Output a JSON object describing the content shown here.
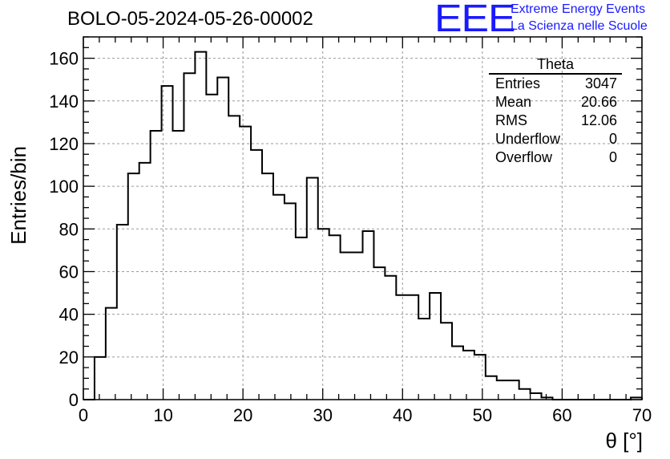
{
  "title": "BOLO-05-2024-05-26-00002",
  "logo": {
    "mark": "EEE",
    "line1": "Extreme Energy Events",
    "line2": "La Scienza nelle Scuole",
    "color": "#1a1aff"
  },
  "stats": {
    "name": "Theta",
    "rows": [
      {
        "label": "Entries",
        "value": "3047"
      },
      {
        "label": "Mean",
        "value": "20.66"
      },
      {
        "label": "RMS",
        "value": "12.06"
      },
      {
        "label": "Underflow",
        "value": "0"
      },
      {
        "label": "Overflow",
        "value": "0"
      }
    ]
  },
  "chart_data": {
    "type": "bar",
    "style": "step-histogram",
    "title": "BOLO-05-2024-05-26-00002",
    "xlabel": "θ [°]",
    "ylabel": "Entries/bin",
    "xlim": [
      0,
      70
    ],
    "ylim": [
      0,
      170
    ],
    "bin_width": 1.4,
    "xticks": [
      0,
      10,
      20,
      30,
      40,
      50,
      60,
      70
    ],
    "yticks": [
      0,
      20,
      40,
      60,
      80,
      100,
      120,
      140,
      160
    ],
    "grid": true,
    "legend": "top-right",
    "bin_starts": [
      0,
      1.4,
      2.8,
      4.2,
      5.6,
      7.0,
      8.4,
      9.8,
      11.2,
      12.6,
      14.0,
      15.4,
      16.8,
      18.2,
      19.6,
      21.0,
      22.4,
      23.8,
      25.2,
      26.6,
      28.0,
      29.4,
      30.8,
      32.2,
      33.6,
      35.0,
      36.4,
      37.8,
      39.2,
      40.6,
      42.0,
      43.4,
      44.8,
      46.2,
      47.6,
      49.0,
      50.4,
      51.8,
      53.2,
      54.6,
      56.0,
      57.4,
      58.8,
      60.2,
      61.6,
      63.0,
      64.4,
      65.8,
      67.2,
      68.6
    ],
    "values": [
      0,
      20,
      43,
      82,
      106,
      111,
      126,
      147,
      126,
      153,
      163,
      143,
      151,
      133,
      128,
      117,
      106,
      96,
      92,
      76,
      104,
      80,
      77,
      69,
      69,
      79,
      62,
      58,
      49,
      49,
      38,
      50,
      36,
      25,
      23,
      21,
      11,
      9,
      9,
      5,
      3,
      1,
      0,
      0,
      0,
      0,
      0,
      0,
      0,
      1
    ]
  }
}
